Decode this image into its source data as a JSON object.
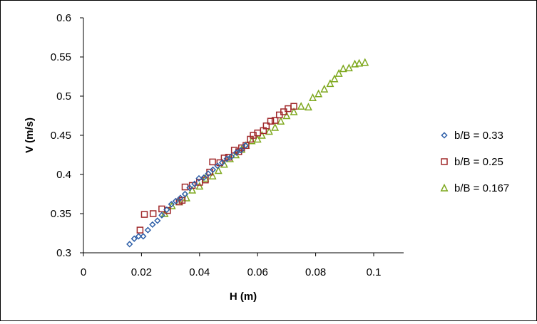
{
  "chart_data": {
    "type": "scatter",
    "xlabel": "H (m)",
    "ylabel": "V (m/s)",
    "xlim": [
      0,
      0.1
    ],
    "ylim": [
      0.3,
      0.6
    ],
    "xticks": [
      0,
      0.02,
      0.04,
      0.06,
      0.08,
      0.1
    ],
    "yticks": [
      0.3,
      0.35,
      0.4,
      0.45,
      0.5,
      0.55,
      0.6
    ],
    "xtick_labels": [
      "0",
      "0.02",
      "0.04",
      "0.06",
      "0.08",
      "0.1"
    ],
    "ytick_labels": [
      "0.3",
      "0.35",
      "0.4",
      "0.45",
      "0.5",
      "0.55",
      "0.6"
    ],
    "grid": false,
    "legend_position": "right",
    "series": [
      {
        "name": "b/B = 0.33",
        "marker": "diamond",
        "color": "#2E5FA8",
        "points": [
          [
            0.0159,
            0.311
          ],
          [
            0.0175,
            0.318
          ],
          [
            0.019,
            0.321
          ],
          [
            0.0206,
            0.321
          ],
          [
            0.0222,
            0.329
          ],
          [
            0.0238,
            0.336
          ],
          [
            0.0255,
            0.341
          ],
          [
            0.027,
            0.348
          ],
          [
            0.0287,
            0.355
          ],
          [
            0.0303,
            0.362
          ],
          [
            0.0318,
            0.366
          ],
          [
            0.0334,
            0.37
          ],
          [
            0.035,
            0.375
          ],
          [
            0.0366,
            0.383
          ],
          [
            0.0383,
            0.388
          ],
          [
            0.0398,
            0.395
          ],
          [
            0.0415,
            0.396
          ],
          [
            0.043,
            0.401
          ],
          [
            0.0446,
            0.406
          ],
          [
            0.0462,
            0.411
          ],
          [
            0.0478,
            0.415
          ],
          [
            0.0494,
            0.42
          ],
          [
            0.051,
            0.423
          ],
          [
            0.0527,
            0.428
          ],
          [
            0.0543,
            0.431
          ],
          [
            0.0558,
            0.437
          ]
        ]
      },
      {
        "name": "b/B = 0.25",
        "marker": "square",
        "color": "#A0282A",
        "points": [
          [
            0.0195,
            0.329
          ],
          [
            0.021,
            0.349
          ],
          [
            0.024,
            0.35
          ],
          [
            0.027,
            0.356
          ],
          [
            0.029,
            0.354
          ],
          [
            0.033,
            0.365
          ],
          [
            0.034,
            0.367
          ],
          [
            0.035,
            0.384
          ],
          [
            0.0375,
            0.386
          ],
          [
            0.04,
            0.39
          ],
          [
            0.042,
            0.393
          ],
          [
            0.0435,
            0.403
          ],
          [
            0.0445,
            0.416
          ],
          [
            0.047,
            0.415
          ],
          [
            0.0485,
            0.421
          ],
          [
            0.05,
            0.422
          ],
          [
            0.052,
            0.431
          ],
          [
            0.0535,
            0.429
          ],
          [
            0.0545,
            0.434
          ],
          [
            0.056,
            0.437
          ],
          [
            0.0575,
            0.445
          ],
          [
            0.0585,
            0.45
          ],
          [
            0.06,
            0.453
          ],
          [
            0.062,
            0.456
          ],
          [
            0.063,
            0.462
          ],
          [
            0.0645,
            0.468
          ],
          [
            0.066,
            0.469
          ],
          [
            0.0675,
            0.476
          ],
          [
            0.069,
            0.48
          ],
          [
            0.0705,
            0.484
          ],
          [
            0.0725,
            0.487
          ]
        ]
      },
      {
        "name": "b/B = 0.167",
        "marker": "triangle",
        "color": "#7EA81E",
        "points": [
          [
            0.028,
            0.35
          ],
          [
            0.0305,
            0.36
          ],
          [
            0.033,
            0.365
          ],
          [
            0.0355,
            0.37
          ],
          [
            0.0375,
            0.38
          ],
          [
            0.04,
            0.385
          ],
          [
            0.042,
            0.395
          ],
          [
            0.0445,
            0.398
          ],
          [
            0.0465,
            0.405
          ],
          [
            0.0485,
            0.413
          ],
          [
            0.0505,
            0.42
          ],
          [
            0.0525,
            0.425
          ],
          [
            0.0545,
            0.432
          ],
          [
            0.056,
            0.437
          ],
          [
            0.058,
            0.443
          ],
          [
            0.06,
            0.445
          ],
          [
            0.0615,
            0.45
          ],
          [
            0.064,
            0.455
          ],
          [
            0.066,
            0.46
          ],
          [
            0.068,
            0.468
          ],
          [
            0.07,
            0.475
          ],
          [
            0.0725,
            0.48
          ],
          [
            0.075,
            0.487
          ],
          [
            0.0775,
            0.486
          ],
          [
            0.079,
            0.498
          ],
          [
            0.081,
            0.503
          ],
          [
            0.083,
            0.509
          ],
          [
            0.085,
            0.516
          ],
          [
            0.0865,
            0.522
          ],
          [
            0.088,
            0.529
          ],
          [
            0.0895,
            0.535
          ],
          [
            0.0915,
            0.536
          ],
          [
            0.0935,
            0.541
          ],
          [
            0.095,
            0.542
          ],
          [
            0.097,
            0.543
          ]
        ]
      }
    ]
  }
}
